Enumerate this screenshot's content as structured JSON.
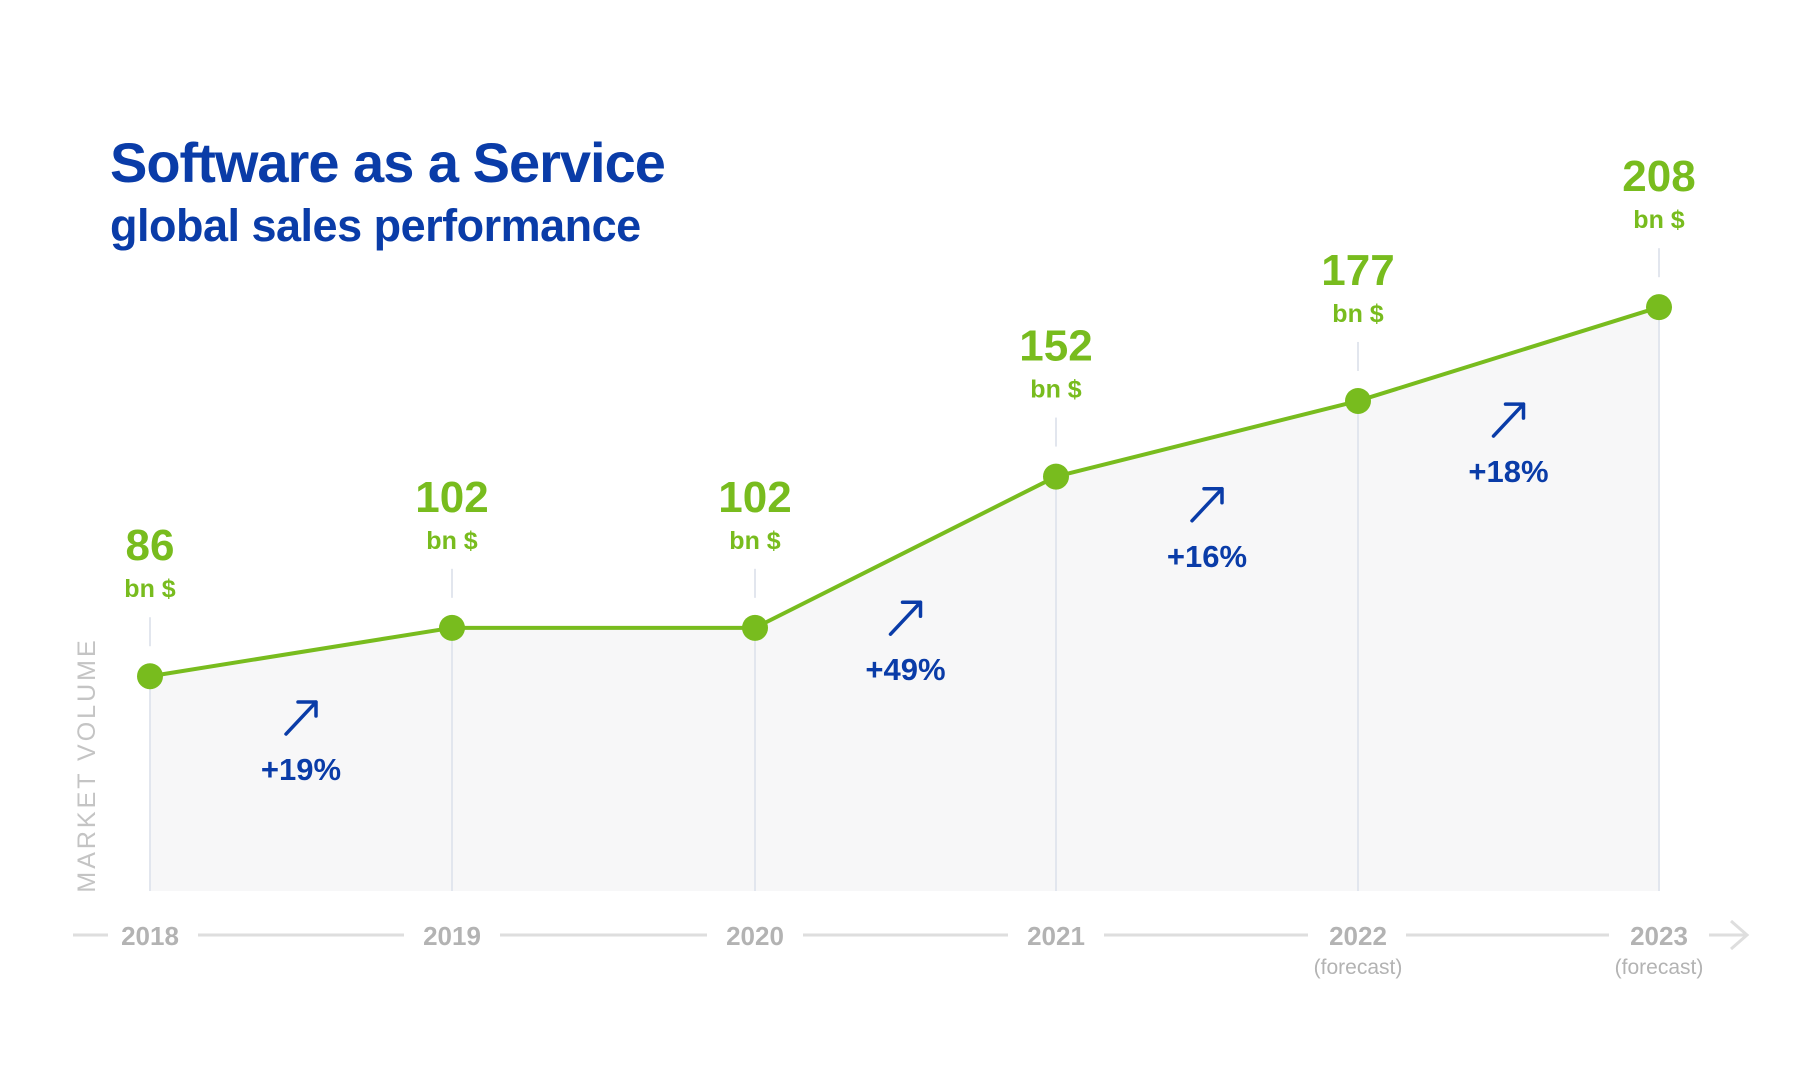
{
  "chart_data": {
    "type": "area",
    "title": "Software as a Service",
    "subtitle": "global sales performance",
    "ylabel": "MARKET VOLUME",
    "xlabel": "",
    "categories": [
      "2018",
      "2019",
      "2020",
      "2021",
      "2022",
      "2023"
    ],
    "category_notes": [
      "",
      "",
      "",
      "",
      "(forecast)",
      "(forecast)"
    ],
    "values": [
      86,
      102,
      102,
      152,
      177,
      208
    ],
    "value_labels": [
      "86",
      "102",
      "102",
      "152",
      "177",
      "208"
    ],
    "unit": "bn $",
    "growth": [
      {
        "from": "2018",
        "to": "2019",
        "label": "+19%"
      },
      {
        "from": "2020",
        "to": "2021",
        "label": "+49%"
      },
      {
        "from": "2021",
        "to": "2022",
        "label": "+16%"
      },
      {
        "from": "2022",
        "to": "2023",
        "label": "+18%"
      }
    ],
    "ylim": [
      15,
      215
    ],
    "grid": "vertical",
    "colors": {
      "line": "#78bc1e",
      "growth": "#0a3ca8",
      "axis": "#b3b3b3",
      "fill": "#f7f7f8",
      "grid": "#e2e6ee"
    }
  }
}
